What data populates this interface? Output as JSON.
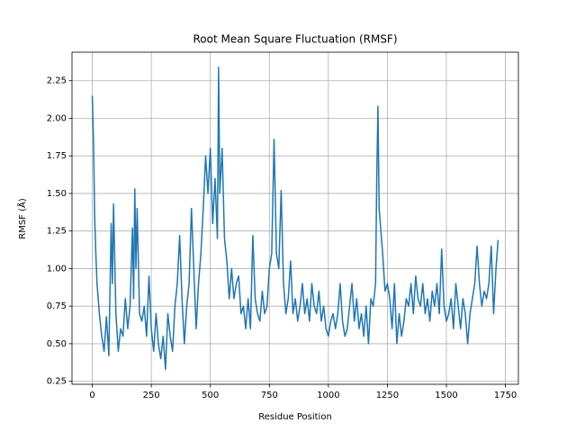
{
  "chart_data": {
    "type": "line",
    "title": "Root Mean Square Fluctuation (RMSF)",
    "x_label": "Residue Position",
    "y_label": "RMSF (Å)",
    "x": [
      0,
      5,
      10,
      15,
      20,
      30,
      40,
      50,
      60,
      70,
      80,
      85,
      90,
      100,
      110,
      120,
      130,
      140,
      150,
      160,
      170,
      175,
      180,
      185,
      190,
      200,
      210,
      220,
      230,
      240,
      250,
      260,
      270,
      280,
      290,
      300,
      310,
      320,
      330,
      340,
      350,
      360,
      370,
      380,
      390,
      400,
      410,
      420,
      430,
      440,
      450,
      460,
      470,
      480,
      490,
      500,
      510,
      520,
      530,
      535,
      540,
      550,
      560,
      570,
      580,
      590,
      600,
      610,
      620,
      630,
      640,
      650,
      660,
      670,
      680,
      690,
      700,
      710,
      720,
      730,
      740,
      750,
      760,
      770,
      780,
      790,
      800,
      810,
      820,
      830,
      840,
      850,
      860,
      870,
      880,
      890,
      900,
      910,
      920,
      930,
      940,
      950,
      960,
      970,
      980,
      990,
      1000,
      1010,
      1020,
      1030,
      1040,
      1050,
      1060,
      1070,
      1080,
      1090,
      1100,
      1110,
      1120,
      1130,
      1140,
      1150,
      1160,
      1170,
      1180,
      1190,
      1200,
      1205,
      1210,
      1215,
      1220,
      1230,
      1240,
      1250,
      1260,
      1270,
      1280,
      1290,
      1300,
      1310,
      1320,
      1330,
      1340,
      1350,
      1360,
      1370,
      1380,
      1390,
      1400,
      1410,
      1420,
      1430,
      1440,
      1450,
      1460,
      1470,
      1480,
      1490,
      1500,
      1510,
      1520,
      1530,
      1540,
      1550,
      1560,
      1570,
      1580,
      1590,
      1600,
      1610,
      1620,
      1630,
      1640,
      1650,
      1660,
      1670,
      1680,
      1690,
      1700,
      1710,
      1719
    ],
    "series": [
      {
        "name": "RMSF",
        "color": "#1f77b4",
        "values": [
          2.15,
          1.85,
          1.35,
          1.1,
          0.9,
          0.7,
          0.55,
          0.45,
          0.68,
          0.42,
          1.3,
          0.9,
          1.43,
          0.7,
          0.45,
          0.6,
          0.55,
          0.8,
          0.6,
          0.75,
          1.27,
          0.8,
          1.53,
          1.0,
          1.4,
          0.7,
          0.65,
          0.75,
          0.55,
          0.95,
          0.6,
          0.45,
          0.7,
          0.5,
          0.4,
          0.55,
          0.33,
          0.7,
          0.55,
          0.45,
          0.75,
          0.9,
          1.22,
          0.8,
          0.5,
          0.75,
          0.9,
          1.4,
          1.0,
          0.6,
          0.9,
          1.1,
          1.4,
          1.75,
          1.5,
          1.8,
          1.3,
          1.6,
          1.2,
          2.34,
          1.5,
          1.8,
          1.2,
          1.05,
          0.8,
          1.0,
          0.8,
          0.9,
          0.95,
          0.7,
          0.75,
          0.6,
          0.8,
          0.6,
          1.22,
          0.8,
          0.7,
          0.65,
          0.85,
          0.7,
          0.75,
          1.0,
          1.1,
          1.86,
          1.1,
          1.0,
          1.52,
          0.9,
          0.7,
          0.8,
          1.05,
          0.7,
          0.8,
          0.65,
          0.75,
          0.9,
          0.7,
          0.8,
          0.65,
          0.9,
          0.75,
          0.7,
          0.85,
          0.65,
          0.75,
          0.6,
          0.55,
          0.65,
          0.7,
          0.6,
          0.7,
          0.9,
          0.65,
          0.55,
          0.6,
          0.75,
          0.9,
          0.65,
          0.8,
          0.6,
          0.7,
          0.55,
          0.75,
          0.5,
          0.8,
          0.75,
          0.9,
          1.6,
          2.08,
          1.4,
          1.3,
          1.1,
          0.85,
          0.9,
          0.8,
          0.6,
          0.9,
          0.5,
          0.7,
          0.55,
          0.65,
          0.8,
          0.75,
          0.9,
          0.7,
          0.95,
          0.8,
          0.75,
          0.9,
          0.7,
          0.8,
          0.65,
          0.85,
          0.75,
          0.9,
          0.7,
          1.13,
          0.75,
          0.65,
          0.7,
          0.8,
          0.6,
          0.9,
          0.75,
          0.6,
          0.8,
          0.7,
          0.5,
          0.7,
          0.8,
          0.9,
          1.15,
          0.9,
          0.75,
          0.85,
          0.8,
          0.9,
          1.15,
          0.7,
          1.0,
          1.19
        ]
      }
    ],
    "xlim": [
      -86,
      1805
    ],
    "ylim": [
      0.23,
      2.44
    ],
    "xticks": [
      0,
      250,
      500,
      750,
      1000,
      1250,
      1500,
      1750
    ],
    "yticks": [
      0.25,
      {
        "value": 0.5,
        "label": "0.50"
      },
      0.75,
      {
        "value": 1.0,
        "label": "1.00"
      },
      1.25,
      {
        "value": 1.5,
        "label": "1.50"
      },
      1.75,
      {
        "value": 2.0,
        "label": "2.00"
      },
      2.25
    ],
    "grid": true
  }
}
